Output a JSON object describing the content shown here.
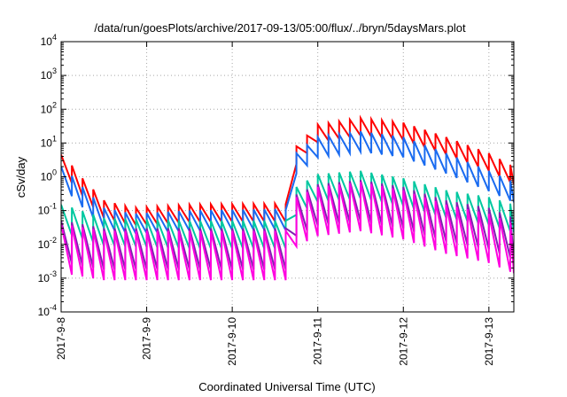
{
  "chart_data": {
    "type": "line",
    "title": "/data/run/goesPlots/archive/2017-09-13/05:00/flux/../bryn/5daysMars.plot",
    "xlabel": "Coordinated Universal Time (UTC)",
    "ylabel": "cSv/day",
    "xlim": [
      "2017-09-08T00:00",
      "2017-09-13T07:00"
    ],
    "ylim": [
      0.0001,
      10000
    ],
    "yscale": "log",
    "grid": true,
    "legend": "none",
    "x_ticks": [
      "2017-9-8",
      "2017-9-9",
      "2017-9-10",
      "2017-9-11",
      "2017-9-12",
      "2017-9-13"
    ],
    "y_ticks": [
      {
        "base": "10",
        "exp": "-4",
        "value": 0.0001
      },
      {
        "base": "10",
        "exp": "-3",
        "value": 0.001
      },
      {
        "base": "10",
        "exp": "-2",
        "value": 0.01
      },
      {
        "base": "10",
        "exp": "-1",
        "value": 0.1
      },
      {
        "base": "10",
        "exp": "0",
        "value": 1
      },
      {
        "base": "10",
        "exp": "1",
        "value": 10
      },
      {
        "base": "10",
        "exp": "2",
        "value": 100
      },
      {
        "base": "10",
        "exp": "3",
        "value": 1000
      },
      {
        "base": "10",
        "exp": "4",
        "value": 10000
      }
    ],
    "sawtooth_period_hours": 3,
    "series": [
      {
        "color": "#ff0000",
        "peaks": [
          [
            "2017-09-08T00:30",
            4.5
          ],
          [
            "2017-09-08T06:00",
            0.9
          ],
          [
            "2017-09-08T12:00",
            0.2
          ],
          [
            "2017-09-08T20:00",
            0.12
          ],
          [
            "2017-09-09T12:00",
            0.15
          ],
          [
            "2017-09-10T12:00",
            0.16
          ],
          [
            "2017-09-10T17:30",
            0.15
          ],
          [
            "2017-09-10T18:00",
            8
          ],
          [
            "2017-09-11T00:00",
            35
          ],
          [
            "2017-09-11T12:00",
            55
          ],
          [
            "2017-09-12T00:00",
            40
          ],
          [
            "2017-09-12T12:00",
            15
          ],
          [
            "2017-09-13T00:00",
            5
          ],
          [
            "2017-09-13T07:00",
            2
          ]
        ],
        "min_ratio": 0.3
      },
      {
        "color": "#1a6bf0",
        "peaks": [
          [
            "2017-09-08T00:30",
            2.0
          ],
          [
            "2017-09-08T06:00",
            0.5
          ],
          [
            "2017-09-08T12:00",
            0.12
          ],
          [
            "2017-09-08T20:00",
            0.08
          ],
          [
            "2017-09-09T12:00",
            0.1
          ],
          [
            "2017-09-10T12:00",
            0.11
          ],
          [
            "2017-09-10T17:30",
            0.1
          ],
          [
            "2017-09-10T18:00",
            5
          ],
          [
            "2017-09-11T00:00",
            15
          ],
          [
            "2017-09-11T12:00",
            22
          ],
          [
            "2017-09-12T00:00",
            15
          ],
          [
            "2017-09-12T12:00",
            5
          ],
          [
            "2017-09-13T00:00",
            1.5
          ],
          [
            "2017-09-13T07:00",
            0.7
          ]
        ],
        "min_ratio": 0.25
      },
      {
        "color": "#00c8a0",
        "peaks": [
          [
            "2017-09-08T00:30",
            0.15
          ],
          [
            "2017-09-08T12:00",
            0.06
          ],
          [
            "2017-09-09T12:00",
            0.05
          ],
          [
            "2017-09-10T12:00",
            0.05
          ],
          [
            "2017-09-10T17:30",
            0.05
          ],
          [
            "2017-09-10T18:00",
            0.5
          ],
          [
            "2017-09-11T00:00",
            1.2
          ],
          [
            "2017-09-11T12:00",
            1.5
          ],
          [
            "2017-09-12T00:00",
            0.9
          ],
          [
            "2017-09-12T12:00",
            0.4
          ],
          [
            "2017-09-13T00:00",
            0.25
          ],
          [
            "2017-09-13T07:00",
            0.15
          ]
        ],
        "min_ratio": 0.15
      },
      {
        "color": "#8020b0",
        "peaks": [
          [
            "2017-09-08T00:30",
            0.05
          ],
          [
            "2017-09-08T12:00",
            0.03
          ],
          [
            "2017-09-09T12:00",
            0.03
          ],
          [
            "2017-09-10T12:00",
            0.03
          ],
          [
            "2017-09-10T17:30",
            0.03
          ],
          [
            "2017-09-10T18:00",
            0.3
          ],
          [
            "2017-09-11T00:00",
            0.6
          ],
          [
            "2017-09-11T12:00",
            0.8
          ],
          [
            "2017-09-12T00:00",
            0.5
          ],
          [
            "2017-09-12T12:00",
            0.2
          ],
          [
            "2017-09-13T00:00",
            0.12
          ],
          [
            "2017-09-13T07:00",
            0.06
          ]
        ],
        "min_ratio": 0.06
      },
      {
        "color": "#ff00e0",
        "peaks": [
          [
            "2017-09-08T00:30",
            0.04
          ],
          [
            "2017-09-08T12:00",
            0.025
          ],
          [
            "2017-09-09T12:00",
            0.025
          ],
          [
            "2017-09-10T12:00",
            0.025
          ],
          [
            "2017-09-10T17:30",
            0.025
          ],
          [
            "2017-09-10T18:00",
            0.25
          ],
          [
            "2017-09-11T00:00",
            0.5
          ],
          [
            "2017-09-11T12:00",
            0.7
          ],
          [
            "2017-09-12T00:00",
            0.4
          ],
          [
            "2017-09-12T12:00",
            0.15
          ],
          [
            "2017-09-13T00:00",
            0.08
          ],
          [
            "2017-09-13T07:00",
            0.04
          ]
        ],
        "min_ratio": 0.035
      }
    ]
  }
}
